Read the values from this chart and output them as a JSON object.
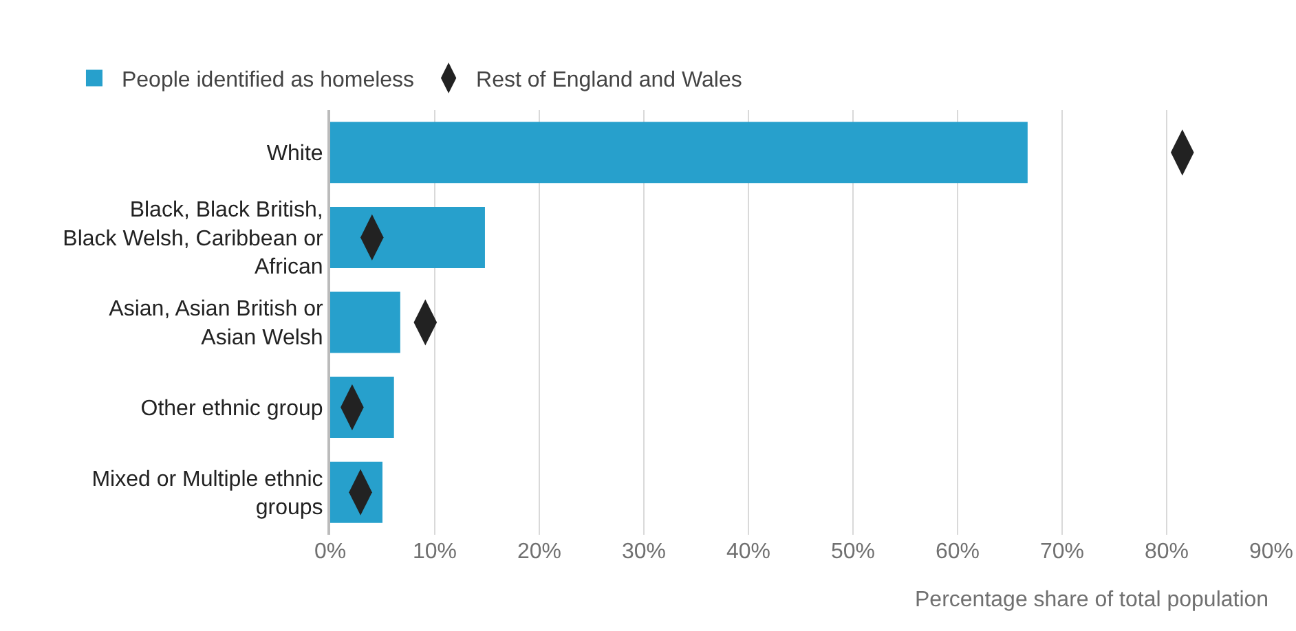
{
  "chart_data": {
    "type": "bar",
    "orientation": "horizontal",
    "categories": [
      "White",
      "Black, Black British, Black Welsh, Caribbean or African",
      "Asian, Asian British or Asian Welsh",
      "Other ethnic group",
      "Mixed or Multiple ethnic groups"
    ],
    "series": [
      {
        "name": "People identified as homeless",
        "color": "#27a0cc",
        "values": [
          66.7,
          14.8,
          6.7,
          6.1,
          5.0
        ]
      },
      {
        "name": "Rest of England and Wales",
        "type": "scatter",
        "color": "#222222",
        "x": [
          "White",
          "Black, Black British, Black Welsh, Caribbean or African",
          "Asian, Asian British or Asian Welsh",
          "Other ethnic group",
          "Mixed or Multiple ethnic groups"
        ],
        "values": [
          81.5,
          4.0,
          9.1,
          2.1,
          2.9
        ]
      }
    ],
    "xlim": [
      0,
      90
    ],
    "xticks": [
      {
        "value": 0,
        "label": "0%"
      },
      {
        "value": 10,
        "label": "10%"
      },
      {
        "value": 20,
        "label": "20%"
      },
      {
        "value": 30,
        "label": "30%"
      },
      {
        "value": 40,
        "label": "40%"
      },
      {
        "value": 50,
        "label": "50%"
      },
      {
        "value": 60,
        "label": "60%"
      },
      {
        "value": 70,
        "label": "70%"
      },
      {
        "value": 80,
        "label": "80%"
      },
      {
        "value": 90,
        "label": "90%"
      }
    ],
    "xlabel": "Percentage share of total population",
    "grid": "x",
    "legend": "top left"
  }
}
